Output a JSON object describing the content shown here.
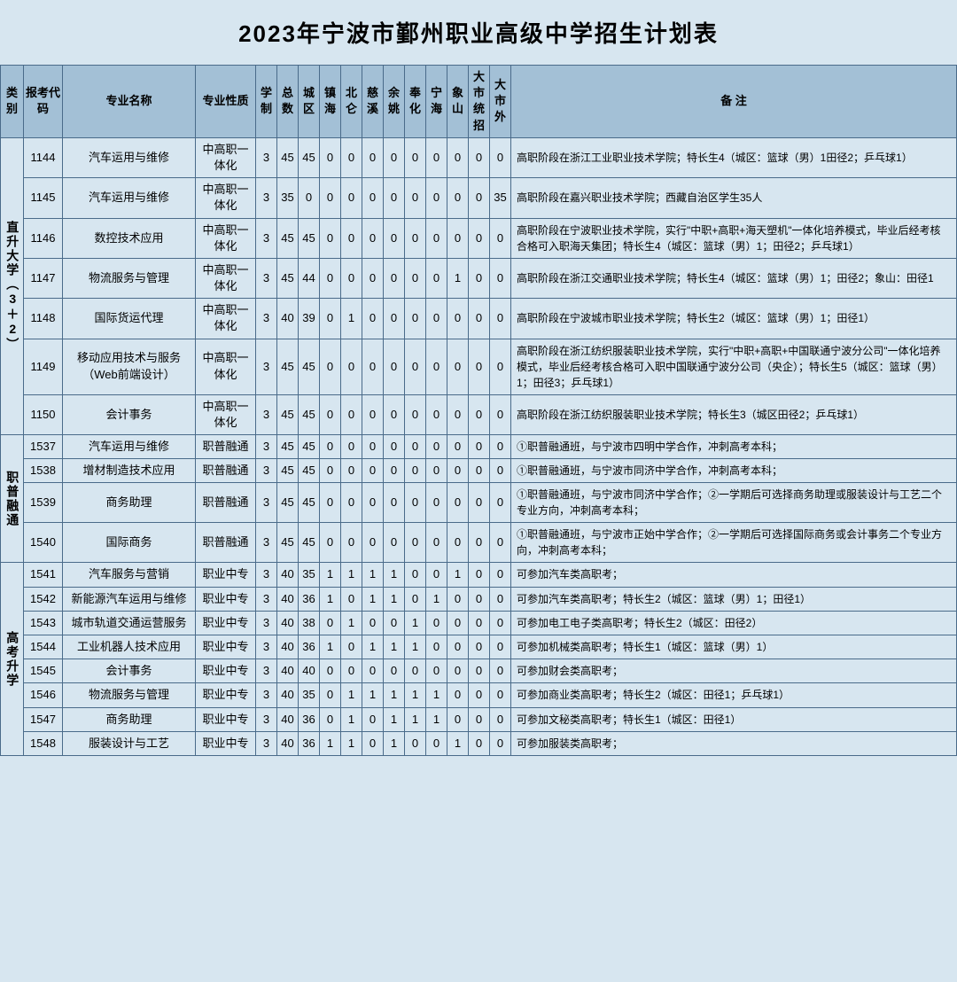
{
  "title": "2023年宁波市鄞州职业高级中学招生计划表",
  "headers": {
    "category": "类别",
    "code": "报考代码",
    "major": "专业名称",
    "nature": "专业性质",
    "system": "学制",
    "total": "总数",
    "chengqu": "城区",
    "zhenhai": "镇海",
    "beilun": "北仑",
    "cixi": "慈溪",
    "yuyao": "余姚",
    "fenghua": "奉化",
    "ninghai": "宁海",
    "xiangshan": "象山",
    "dashi": "大市统招",
    "dashiwai": "大市外",
    "remark": "备 注"
  },
  "groups": [
    {
      "category": "直升大学（3＋2）",
      "rows": [
        {
          "code": "1144",
          "major": "汽车运用与维修",
          "nature": "中高职一体化",
          "system": "3",
          "total": "45",
          "nums": [
            "45",
            "0",
            "0",
            "0",
            "0",
            "0",
            "0",
            "0",
            "0",
            "0"
          ],
          "remark": "高职阶段在浙江工业职业技术学院；特长生4（城区：篮球（男）1田径2；乒乓球1）"
        },
        {
          "code": "1145",
          "major": "汽车运用与维修",
          "nature": "中高职一体化",
          "system": "3",
          "total": "35",
          "nums": [
            "0",
            "0",
            "0",
            "0",
            "0",
            "0",
            "0",
            "0",
            "0",
            "35"
          ],
          "remark": "高职阶段在嘉兴职业技术学院；西藏自治区学生35人"
        },
        {
          "code": "1146",
          "major": "数控技术应用",
          "nature": "中高职一体化",
          "system": "3",
          "total": "45",
          "nums": [
            "45",
            "0",
            "0",
            "0",
            "0",
            "0",
            "0",
            "0",
            "0",
            "0"
          ],
          "remark": "高职阶段在宁波职业技术学院，实行\"中职+高职+海天塑机\"一体化培养模式，毕业后经考核合格可入职海天集团；特长生4（城区：篮球（男）1；田径2；乒乓球1）"
        },
        {
          "code": "1147",
          "major": "物流服务与管理",
          "nature": "中高职一体化",
          "system": "3",
          "total": "45",
          "nums": [
            "44",
            "0",
            "0",
            "0",
            "0",
            "0",
            "0",
            "1",
            "0",
            "0"
          ],
          "remark": "高职阶段在浙江交通职业技术学院；特长生4（城区：篮球（男）1；田径2；象山：田径1"
        },
        {
          "code": "1148",
          "major": "国际货运代理",
          "nature": "中高职一体化",
          "system": "3",
          "total": "40",
          "nums": [
            "39",
            "0",
            "1",
            "0",
            "0",
            "0",
            "0",
            "0",
            "0",
            "0"
          ],
          "remark": "高职阶段在宁波城市职业技术学院；特长生2（城区：篮球（男）1；田径1）"
        },
        {
          "code": "1149",
          "major": "移动应用技术与服务（Web前端设计）",
          "nature": "中高职一体化",
          "system": "3",
          "total": "45",
          "nums": [
            "45",
            "0",
            "0",
            "0",
            "0",
            "0",
            "0",
            "0",
            "0",
            "0"
          ],
          "remark": "高职阶段在浙江纺织服装职业技术学院，实行\"中职+高职+中国联通宁波分公司\"一体化培养模式，毕业后经考核合格可入职中国联通宁波分公司（央企）；特长生5（城区：篮球（男）1；田径3；乒乓球1）"
        },
        {
          "code": "1150",
          "major": "会计事务",
          "nature": "中高职一体化",
          "system": "3",
          "total": "45",
          "nums": [
            "45",
            "0",
            "0",
            "0",
            "0",
            "0",
            "0",
            "0",
            "0",
            "0"
          ],
          "remark": "高职阶段在浙江纺织服装职业技术学院；特长生3（城区田径2；乒乓球1）"
        }
      ]
    },
    {
      "category": "职普融通",
      "rows": [
        {
          "code": "1537",
          "major": "汽车运用与维修",
          "nature": "职普融通",
          "system": "3",
          "total": "45",
          "nums": [
            "45",
            "0",
            "0",
            "0",
            "0",
            "0",
            "0",
            "0",
            "0",
            "0"
          ],
          "remark": "①职普融通班，与宁波市四明中学合作，冲刺高考本科；"
        },
        {
          "code": "1538",
          "major": "增材制造技术应用",
          "nature": "职普融通",
          "system": "3",
          "total": "45",
          "nums": [
            "45",
            "0",
            "0",
            "0",
            "0",
            "0",
            "0",
            "0",
            "0",
            "0"
          ],
          "remark": "①职普融通班，与宁波市同济中学合作，冲刺高考本科；"
        },
        {
          "code": "1539",
          "major": "商务助理",
          "nature": "职普融通",
          "system": "3",
          "total": "45",
          "nums": [
            "45",
            "0",
            "0",
            "0",
            "0",
            "0",
            "0",
            "0",
            "0",
            "0"
          ],
          "remark": "①职普融通班，与宁波市同济中学合作；②一学期后可选择商务助理或服装设计与工艺二个专业方向，冲刺高考本科；"
        },
        {
          "code": "1540",
          "major": "国际商务",
          "nature": "职普融通",
          "system": "3",
          "total": "45",
          "nums": [
            "45",
            "0",
            "0",
            "0",
            "0",
            "0",
            "0",
            "0",
            "0",
            "0"
          ],
          "remark": "①职普融通班，与宁波市正始中学合作；②一学期后可选择国际商务或会计事务二个专业方向，冲刺高考本科；"
        }
      ]
    },
    {
      "category": "高考升学",
      "rows": [
        {
          "code": "1541",
          "major": "汽车服务与营销",
          "nature": "职业中专",
          "system": "3",
          "total": "40",
          "nums": [
            "35",
            "1",
            "1",
            "1",
            "1",
            "0",
            "0",
            "1",
            "0",
            "0"
          ],
          "remark": "可参加汽车类高职考；"
        },
        {
          "code": "1542",
          "major": "新能源汽车运用与维修",
          "nature": "职业中专",
          "system": "3",
          "total": "40",
          "nums": [
            "36",
            "1",
            "0",
            "1",
            "1",
            "0",
            "1",
            "0",
            "0",
            "0"
          ],
          "remark": "可参加汽车类高职考；特长生2（城区：篮球（男）1；田径1）"
        },
        {
          "code": "1543",
          "major": "城市轨道交通运营服务",
          "nature": "职业中专",
          "system": "3",
          "total": "40",
          "nums": [
            "38",
            "0",
            "1",
            "0",
            "0",
            "1",
            "0",
            "0",
            "0",
            "0"
          ],
          "remark": "可参加电工电子类高职考；特长生2（城区：田径2）"
        },
        {
          "code": "1544",
          "major": "工业机器人技术应用",
          "nature": "职业中专",
          "system": "3",
          "total": "40",
          "nums": [
            "36",
            "1",
            "0",
            "1",
            "1",
            "1",
            "0",
            "0",
            "0",
            "0"
          ],
          "remark": "可参加机械类高职考；特长生1（城区：篮球（男）1）"
        },
        {
          "code": "1545",
          "major": "会计事务",
          "nature": "职业中专",
          "system": "3",
          "total": "40",
          "nums": [
            "40",
            "0",
            "0",
            "0",
            "0",
            "0",
            "0",
            "0",
            "0",
            "0"
          ],
          "remark": "可参加财会类高职考；"
        },
        {
          "code": "1546",
          "major": "物流服务与管理",
          "nature": "职业中专",
          "system": "3",
          "total": "40",
          "nums": [
            "35",
            "0",
            "1",
            "1",
            "1",
            "1",
            "1",
            "0",
            "0",
            "0"
          ],
          "remark": "可参加商业类高职考；特长生2（城区：田径1；乒乓球1）"
        },
        {
          "code": "1547",
          "major": "商务助理",
          "nature": "职业中专",
          "system": "3",
          "total": "40",
          "nums": [
            "36",
            "0",
            "1",
            "0",
            "1",
            "1",
            "1",
            "0",
            "0",
            "0"
          ],
          "remark": "可参加文秘类高职考；特长生1（城区：田径1）"
        },
        {
          "code": "1548",
          "major": "服装设计与工艺",
          "nature": "职业中专",
          "system": "3",
          "total": "40",
          "nums": [
            "36",
            "1",
            "1",
            "0",
            "1",
            "0",
            "0",
            "1",
            "0",
            "0"
          ],
          "remark": "可参加服装类高职考；"
        }
      ]
    }
  ]
}
